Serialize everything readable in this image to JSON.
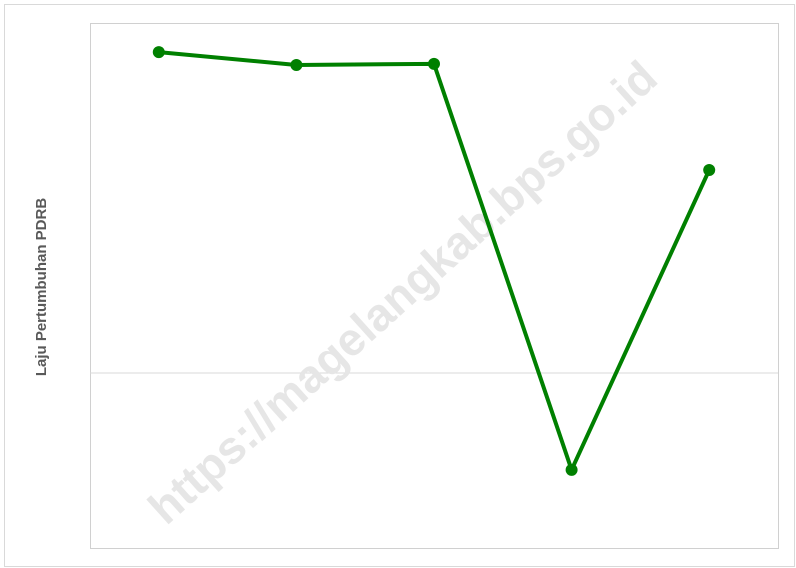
{
  "chart_data": {
    "type": "line",
    "y_label": "Laju Pertumbuhan PDRB",
    "watermark": "https://magelangkab.bps.go.id",
    "categories": [
      null,
      null,
      null,
      null,
      null
    ],
    "series": [
      {
        "name": null,
        "color": "#008000",
        "values": [
          5.5,
          5.28,
          5.3,
          -1.66,
          3.48
        ]
      }
    ],
    "ylim": [
      -3,
      6
    ],
    "yticks": [
      0
    ],
    "show_tick_labels": false,
    "grid": true
  }
}
